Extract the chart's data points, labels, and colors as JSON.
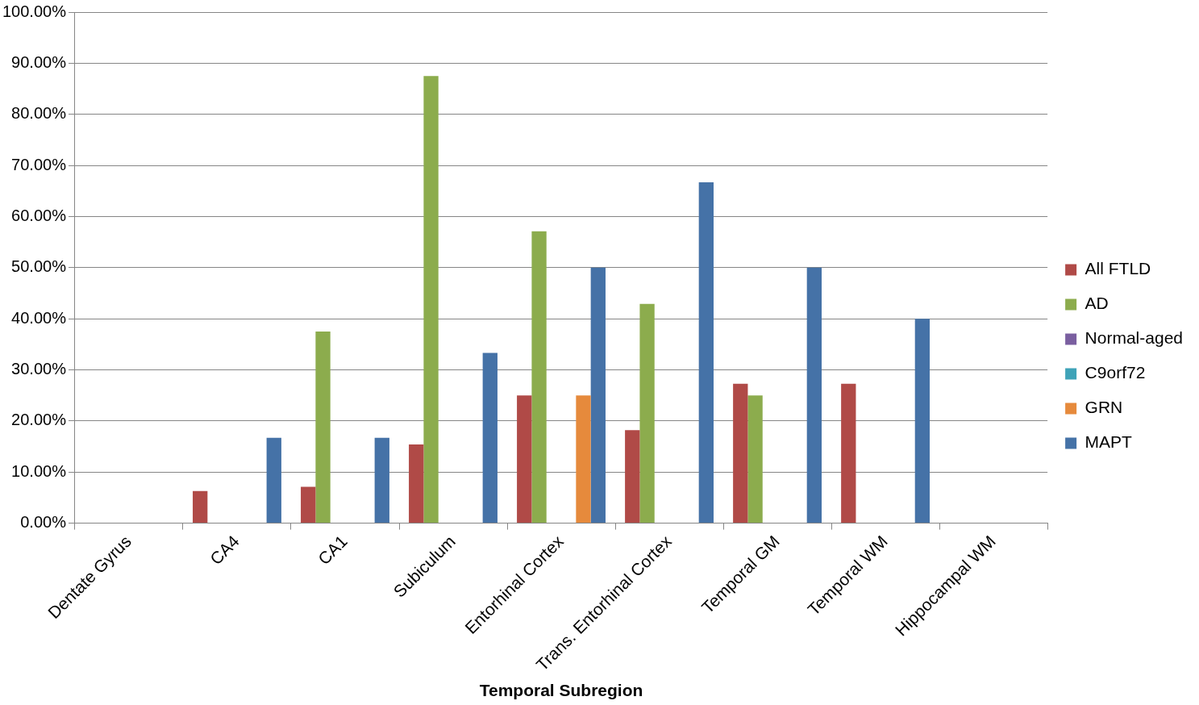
{
  "chart_data": {
    "type": "bar",
    "xlabel": "Temporal Subregion",
    "categories": [
      "Dentate Gyrus",
      "CA4",
      "CA1",
      "Subiculum",
      "Entorhinal Cortex",
      "Trans. Entorhinal Cortex",
      "Temporal GM",
      "Temporal WM",
      "Hippocampal WM"
    ],
    "series": [
      {
        "name": "All FTLD",
        "color": "#b04a47",
        "values": [
          0,
          6.3,
          7.1,
          15.4,
          25,
          18.2,
          27.3,
          27.3,
          0
        ]
      },
      {
        "name": "AD",
        "color": "#8cac4d",
        "values": [
          0,
          0,
          37.5,
          87.5,
          57.1,
          42.9,
          25,
          0,
          0
        ]
      },
      {
        "name": "Normal-aged",
        "color": "#7a5fa0",
        "values": [
          0,
          0,
          0,
          0,
          0,
          0,
          0,
          0,
          0
        ]
      },
      {
        "name": "C9orf72",
        "color": "#3fa3b8",
        "values": [
          0,
          0,
          0,
          0,
          0,
          0,
          0,
          0,
          0
        ]
      },
      {
        "name": "GRN",
        "color": "#e68a3c",
        "values": [
          0,
          0,
          0,
          0,
          25,
          0,
          0,
          0,
          0
        ]
      },
      {
        "name": "MAPT",
        "color": "#4572a7",
        "values": [
          0,
          16.7,
          16.7,
          33.3,
          50,
          66.7,
          50,
          40,
          0
        ]
      }
    ],
    "ylim": [
      0,
      100
    ],
    "yticks": [
      {
        "value": 0,
        "label": "0.00%"
      },
      {
        "value": 10,
        "label": "10.00%"
      },
      {
        "value": 20,
        "label": "20.00%"
      },
      {
        "value": 30,
        "label": "30.00%"
      },
      {
        "value": 40,
        "label": "40.00%"
      },
      {
        "value": 50,
        "label": "50.00%"
      },
      {
        "value": 60,
        "label": "60.00%"
      },
      {
        "value": 70,
        "label": "70.00%"
      },
      {
        "value": 80,
        "label": "80.00%"
      },
      {
        "value": 90,
        "label": "90.00%"
      },
      {
        "value": 100,
        "label": "100.00%"
      }
    ],
    "grid": "y",
    "legend": "right"
  }
}
